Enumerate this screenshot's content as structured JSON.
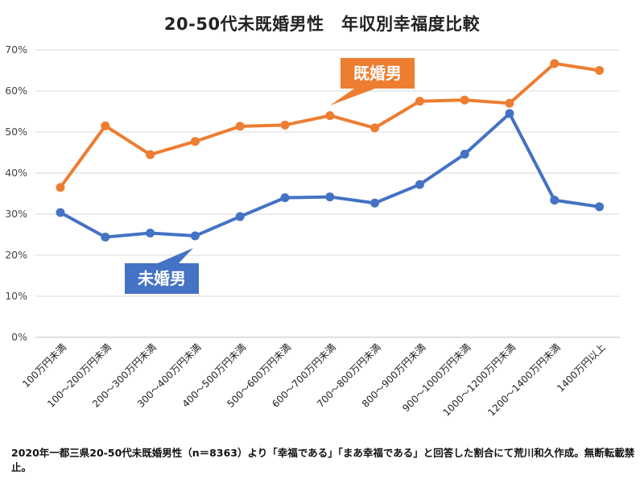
{
  "chart_data": {
    "type": "line",
    "title": "20-50代未既婚男性　年収別幸福度比較",
    "xlabel": "",
    "ylabel": "",
    "categories": [
      "100万円未満",
      "100～200万円未満",
      "200～300万円未満",
      "300～400万円未満",
      "400～500万円未満",
      "500～600万円未満",
      "600～700万円未満",
      "700～800万円未満",
      "800～900万円未満",
      "900～1000万円未満",
      "1000～1200万円未満",
      "1200～1400万円未満",
      "1400万円以上"
    ],
    "y_ticks": [
      "0%",
      "10%",
      "20%",
      "30%",
      "40%",
      "50%",
      "60%",
      "70%"
    ],
    "ylim": [
      0,
      70
    ],
    "grid": true,
    "series": [
      {
        "name": "既婚男",
        "color": "#ED7D31",
        "values": [
          36.5,
          51.5,
          44.5,
          47.7,
          51.4,
          51.7,
          54.0,
          51.0,
          57.5,
          57.8,
          57.0,
          66.7,
          65.0
        ]
      },
      {
        "name": "未婚男",
        "color": "#4472C4",
        "values": [
          30.4,
          24.4,
          25.4,
          24.7,
          29.4,
          34.0,
          34.2,
          32.7,
          37.2,
          44.6,
          54.5,
          33.4,
          31.8
        ]
      }
    ]
  },
  "footnote": "2020年一都三県20-50代未既婚男性（n＝8363）より「幸福である」「まあ幸福である」と回答した割合にて荒川和久作成。無断転載禁止。"
}
